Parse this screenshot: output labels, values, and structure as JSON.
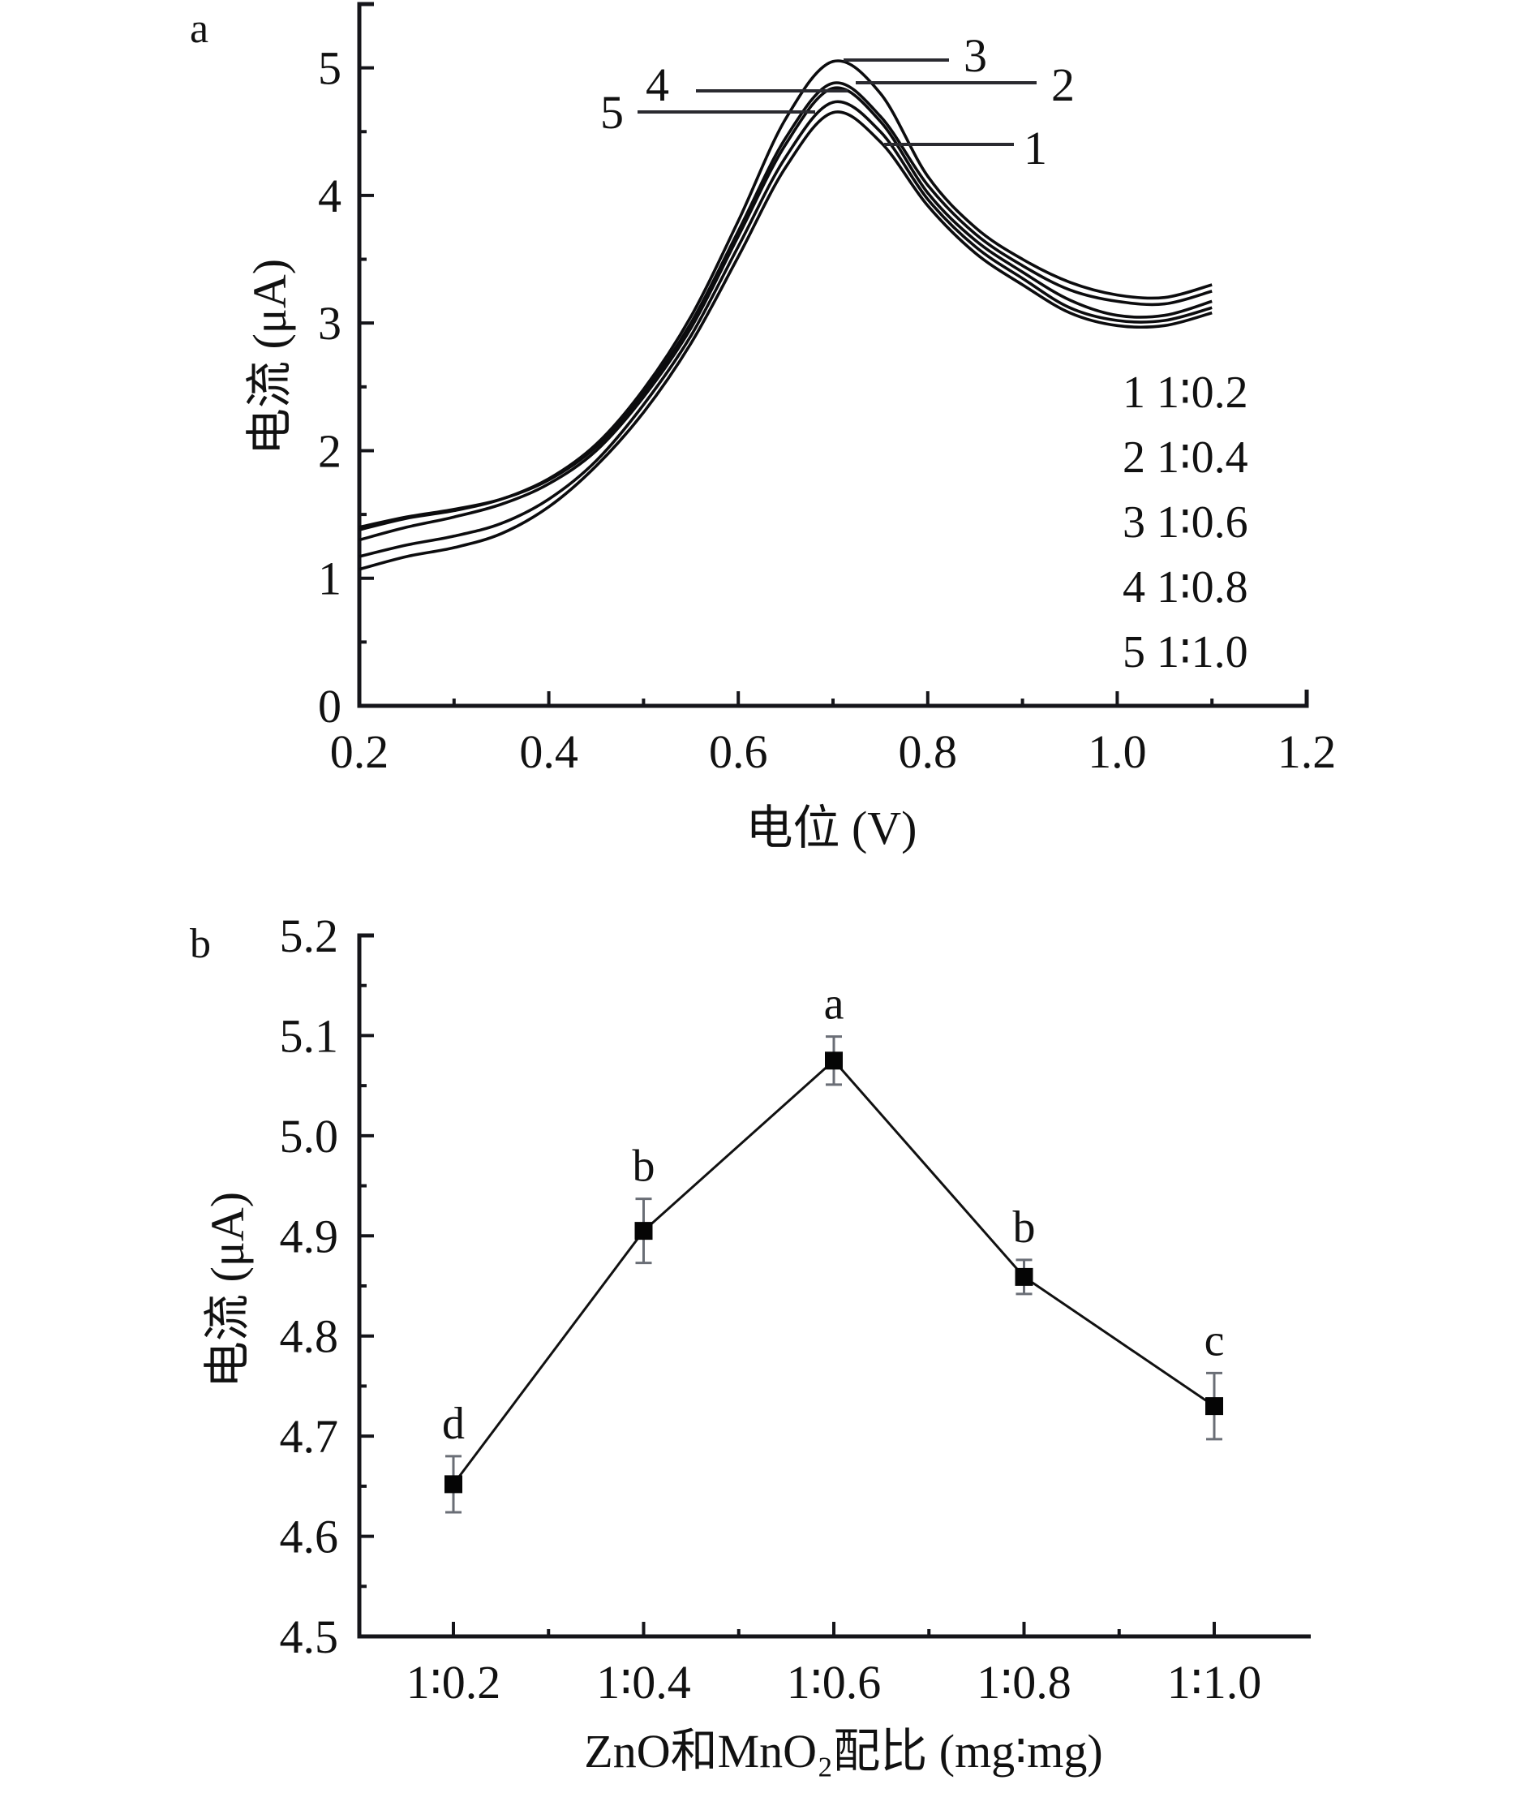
{
  "chart_data": [
    {
      "type": "line",
      "panel_label": "a",
      "xlabel": "电位 (V)",
      "ylabel": "电流 (μA)",
      "xlim": [
        0.2,
        1.2
      ],
      "ylim": [
        0,
        5.5
      ],
      "x_ticks": [
        0.2,
        0.4,
        0.6,
        0.8,
        1.0,
        1.2
      ],
      "x_tick_labels": [
        "0.2",
        "0.4",
        "0.6",
        "0.8",
        "1.0",
        "1.2"
      ],
      "y_ticks": [
        0,
        1,
        2,
        3,
        4,
        5
      ],
      "y_tick_labels": [
        "0",
        "1",
        "2",
        "3",
        "4",
        "5"
      ],
      "grid": false,
      "legend_position": "right",
      "legend": [
        "1 1∶0.2",
        "2 1∶0.4",
        "3 1∶0.6",
        "4 1∶0.8",
        "5 1∶1.0"
      ],
      "x": [
        0.2,
        0.25,
        0.3,
        0.35,
        0.4,
        0.45,
        0.5,
        0.55,
        0.6,
        0.65,
        0.7,
        0.75,
        0.8,
        0.85,
        0.9,
        0.95,
        1.0,
        1.05,
        1.1
      ],
      "series": [
        {
          "name": "1",
          "label": "1",
          "values": [
            1.07,
            1.17,
            1.24,
            1.35,
            1.56,
            1.88,
            2.3,
            2.84,
            3.52,
            4.22,
            4.65,
            4.42,
            3.92,
            3.55,
            3.3,
            3.08,
            2.98,
            2.98,
            3.08
          ]
        },
        {
          "name": "2",
          "label": "2",
          "values": [
            1.4,
            1.48,
            1.54,
            1.62,
            1.77,
            2.03,
            2.45,
            3.0,
            3.72,
            4.45,
            4.88,
            4.62,
            4.08,
            3.7,
            3.45,
            3.26,
            3.17,
            3.15,
            3.25
          ]
        },
        {
          "name": "3",
          "label": "3",
          "values": [
            1.38,
            1.47,
            1.53,
            1.62,
            1.78,
            2.05,
            2.48,
            3.05,
            3.8,
            4.6,
            5.05,
            4.8,
            4.15,
            3.75,
            3.5,
            3.32,
            3.22,
            3.2,
            3.3
          ]
        },
        {
          "name": "4",
          "label": "4",
          "values": [
            1.3,
            1.4,
            1.48,
            1.58,
            1.74,
            2.0,
            2.42,
            2.96,
            3.68,
            4.4,
            4.84,
            4.58,
            4.02,
            3.65,
            3.4,
            3.18,
            3.06,
            3.06,
            3.17
          ]
        },
        {
          "name": "5",
          "label": "5",
          "values": [
            1.17,
            1.26,
            1.33,
            1.43,
            1.62,
            1.92,
            2.36,
            2.9,
            3.6,
            4.3,
            4.73,
            4.5,
            3.97,
            3.6,
            3.35,
            3.12,
            3.02,
            3.02,
            3.12
          ]
        }
      ]
    },
    {
      "type": "line",
      "panel_label": "b",
      "xlabel": "ZnO和MnO₂配比 (mg∶mg)",
      "ylabel": "电流 (μA)",
      "ylim": [
        4.5,
        5.2
      ],
      "categories": [
        "1∶0.2",
        "1∶0.4",
        "1∶0.6",
        "1∶0.8",
        "1∶1.0"
      ],
      "y_ticks": [
        4.5,
        4.6,
        4.7,
        4.8,
        4.9,
        5.0,
        5.1,
        5.2
      ],
      "y_tick_labels": [
        "4.5",
        "4.6",
        "4.7",
        "4.8",
        "4.9",
        "5.0",
        "5.1",
        "5.2"
      ],
      "grid": false,
      "series": [
        {
          "name": "电流",
          "values": [
            4.652,
            4.905,
            5.075,
            4.859,
            4.73
          ],
          "error": [
            0.028,
            0.032,
            0.024,
            0.017,
            0.033
          ],
          "significance": [
            "d",
            "b",
            "a",
            "b",
            "c"
          ]
        }
      ]
    }
  ]
}
